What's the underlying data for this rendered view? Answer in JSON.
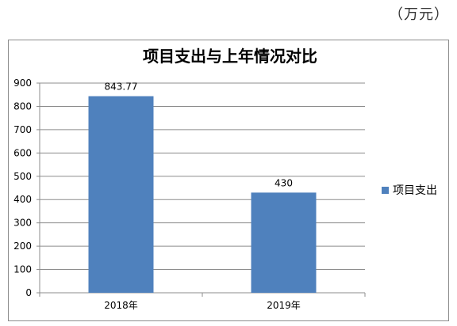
{
  "unit": "（万元）",
  "chart_data": {
    "type": "bar",
    "title": "项目支出与上年情况对比",
    "categories": [
      "2018年",
      "2019年"
    ],
    "series": [
      {
        "name": "项目支出",
        "values": [
          843.77,
          430
        ],
        "labels": [
          "843.77",
          "430"
        ]
      }
    ],
    "ylim": [
      0,
      900
    ],
    "yticks": [
      0,
      100,
      200,
      300,
      400,
      500,
      600,
      700,
      800,
      900
    ],
    "grid": true,
    "legend_position": "right",
    "bar_color": "#4f81bd"
  }
}
